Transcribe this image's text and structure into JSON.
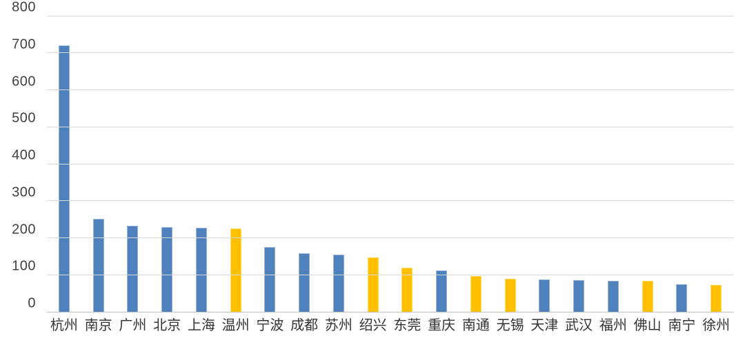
{
  "chart_data": {
    "type": "bar",
    "title": "",
    "xlabel": "",
    "ylabel": "",
    "categories": [
      "杭州",
      "南京",
      "广州",
      "北京",
      "上海",
      "温州",
      "宁波",
      "成都",
      "苏州",
      "绍兴",
      "东莞",
      "重庆",
      "南通",
      "无锡",
      "天津",
      "武汉",
      "福州",
      "佛山",
      "南宁",
      "徐州"
    ],
    "values": [
      720,
      252,
      233,
      229,
      227,
      226,
      175,
      158,
      155,
      147,
      120,
      111,
      96,
      90,
      88,
      85,
      83,
      83,
      74,
      72
    ],
    "bar_color_keys": [
      "blue",
      "blue",
      "blue",
      "blue",
      "blue",
      "yellow",
      "blue",
      "blue",
      "blue",
      "yellow",
      "yellow",
      "blue",
      "yellow",
      "yellow",
      "blue",
      "blue",
      "blue",
      "yellow",
      "blue",
      "yellow"
    ],
    "palette": {
      "blue": "#4f81bd",
      "blue_edge": "#95b3d7",
      "yellow": "#ffc000",
      "yellow_edge": "#ffd966"
    },
    "ylim": [
      0,
      800
    ],
    "yticks": [
      0,
      100,
      200,
      300,
      400,
      500,
      600,
      700,
      800
    ],
    "grid": true,
    "gridline_color": "#d9d9d9",
    "baseline_color": "#bfbfbf",
    "legend": "none"
  }
}
